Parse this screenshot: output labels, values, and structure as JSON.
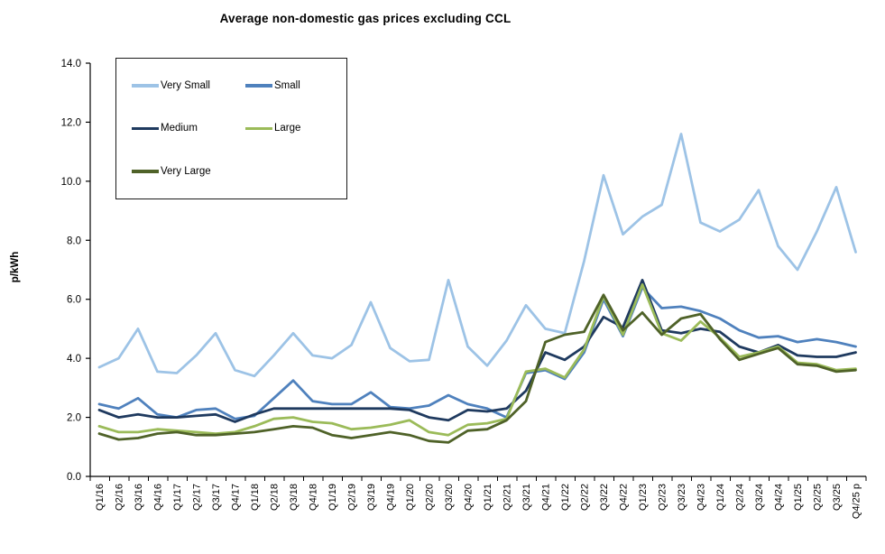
{
  "title": "Average non-domestic gas prices excluding CCL",
  "y_axis_label": "p/kWh",
  "chart_data": {
    "type": "line",
    "title": "Average non-domestic gas prices excluding CCL",
    "ylabel": "p/kWh",
    "xlabel": "",
    "ylim": [
      0,
      14
    ],
    "ytick_step": 2,
    "grid": false,
    "legend_position": "top-left-inside",
    "categories": [
      "Q1/16",
      "Q2/16",
      "Q3/16",
      "Q4/16",
      "Q1/17",
      "Q2/17",
      "Q3/17",
      "Q4/17",
      "Q1/18",
      "Q2/18",
      "Q3/18",
      "Q4/18",
      "Q1/19",
      "Q2/19",
      "Q3/19",
      "Q4/19",
      "Q1/20",
      "Q2/20",
      "Q3/20",
      "Q4/20",
      "Q1/21",
      "Q2/21",
      "Q3/21",
      "Q4/21",
      "Q1/22",
      "Q2/22",
      "Q3/22",
      "Q4/22",
      "Q1/23",
      "Q2/23",
      "Q3/23",
      "Q4/23",
      "Q1/24",
      "Q2/24",
      "Q3/24",
      "Q4/24",
      "Q1/25",
      "Q2/25",
      "Q3/25",
      "Q4/25 p"
    ],
    "series": [
      {
        "name": "Very Small",
        "color": "#9dc3e6",
        "values": [
          3.7,
          4.0,
          5.0,
          3.55,
          3.5,
          4.1,
          4.85,
          3.6,
          3.4,
          4.1,
          4.85,
          4.1,
          4.0,
          4.45,
          5.9,
          4.35,
          3.9,
          3.95,
          6.65,
          4.4,
          3.75,
          4.6,
          5.8,
          5.0,
          4.85,
          7.3,
          10.2,
          8.2,
          8.8,
          9.2,
          11.6,
          8.6,
          8.3,
          8.7,
          9.7,
          7.8,
          7.0,
          8.3,
          9.8,
          7.6
        ]
      },
      {
        "name": "Small",
        "color": "#4f81bd",
        "values": [
          2.45,
          2.3,
          2.65,
          2.1,
          2.0,
          2.25,
          2.3,
          1.95,
          2.05,
          2.65,
          3.25,
          2.55,
          2.45,
          2.45,
          2.85,
          2.35,
          2.3,
          2.4,
          2.75,
          2.45,
          2.3,
          2.0,
          3.5,
          3.6,
          3.3,
          4.2,
          6.0,
          4.75,
          6.4,
          5.7,
          5.75,
          5.6,
          5.35,
          4.95,
          4.7,
          4.75,
          4.55,
          4.65,
          4.55,
          4.4
        ]
      },
      {
        "name": "Medium",
        "color": "#1f3a5f",
        "values": [
          2.25,
          2.0,
          2.1,
          2.0,
          2.0,
          2.05,
          2.1,
          1.85,
          2.1,
          2.3,
          2.3,
          2.3,
          2.3,
          2.3,
          2.3,
          2.3,
          2.25,
          2.0,
          1.9,
          2.25,
          2.2,
          2.3,
          2.9,
          4.2,
          3.95,
          4.4,
          5.4,
          5.05,
          6.65,
          4.95,
          4.85,
          5.0,
          4.9,
          4.4,
          4.2,
          4.45,
          4.1,
          4.05,
          4.05,
          4.2
        ]
      },
      {
        "name": "Large",
        "color": "#9bbb59",
        "values": [
          1.7,
          1.5,
          1.5,
          1.6,
          1.55,
          1.5,
          1.45,
          1.5,
          1.7,
          1.95,
          2.0,
          1.85,
          1.8,
          1.6,
          1.65,
          1.75,
          1.9,
          1.5,
          1.4,
          1.75,
          1.8,
          1.95,
          3.55,
          3.65,
          3.35,
          4.3,
          6.1,
          4.8,
          6.5,
          4.85,
          4.6,
          5.25,
          4.7,
          4.05,
          4.2,
          4.4,
          3.85,
          3.8,
          3.6,
          3.65
        ]
      },
      {
        "name": "Very Large",
        "color": "#4f6228",
        "values": [
          1.45,
          1.25,
          1.3,
          1.45,
          1.5,
          1.4,
          1.4,
          1.45,
          1.5,
          1.6,
          1.7,
          1.65,
          1.4,
          1.3,
          1.4,
          1.5,
          1.4,
          1.2,
          1.15,
          1.55,
          1.6,
          1.9,
          2.55,
          4.55,
          4.8,
          4.9,
          6.15,
          4.95,
          5.55,
          4.8,
          5.35,
          5.5,
          4.65,
          3.95,
          4.15,
          4.35,
          3.8,
          3.75,
          3.55,
          3.6
        ]
      }
    ]
  }
}
